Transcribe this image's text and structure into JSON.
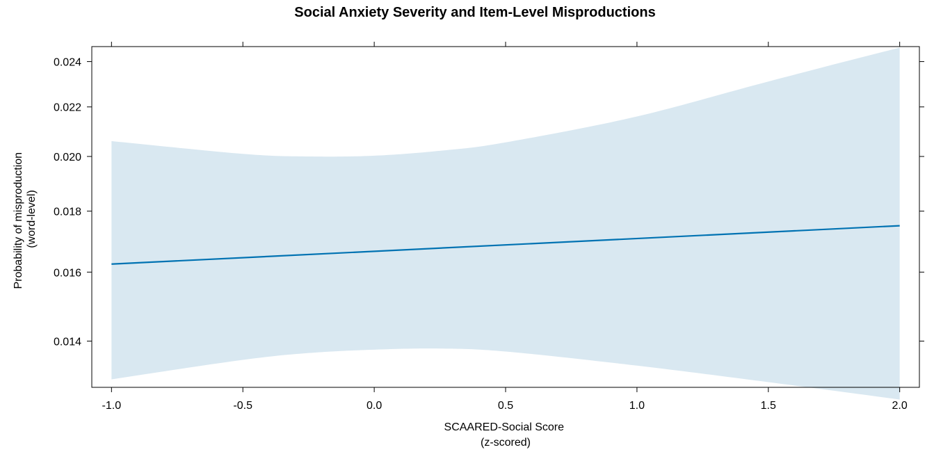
{
  "chart_data": {
    "type": "line",
    "title": "Social Anxiety Severity and Item-Level Misproductions",
    "xlabel_lines": [
      "SCAARED-Social Score",
      "(z-scored)"
    ],
    "ylabel_lines": [
      "Probability of misproduction",
      "(word-level)"
    ],
    "xlim": [
      -1.075,
      2.075
    ],
    "ylim": [
      0.0128,
      0.0247
    ],
    "y_scale": "logit",
    "x_ticks": [
      -1.0,
      -0.5,
      0.0,
      0.5,
      1.0,
      1.5,
      2.0
    ],
    "x_tick_labels": [
      "-1.0",
      "-0.5",
      "0.0",
      "0.5",
      "1.0",
      "1.5",
      "2.0"
    ],
    "y_ticks": [
      0.014,
      0.016,
      0.018,
      0.02,
      0.022,
      0.024
    ],
    "y_tick_labels": [
      "0.014",
      "0.016",
      "0.018",
      "0.020",
      "0.022",
      "0.024"
    ],
    "grid": false,
    "series": [
      {
        "x": [
          -1.0,
          2.0
        ],
        "y": [
          0.01625,
          0.0175
        ]
      }
    ],
    "confidence_band": {
      "x": [
        -1.0,
        -0.5,
        -0.25,
        0.0,
        0.25,
        0.5,
        1.0,
        1.5,
        2.0
      ],
      "upper": [
        0.0206,
        0.0201,
        0.02,
        0.02003,
        0.02022,
        0.02055,
        0.0216,
        0.0231,
        0.02465
      ],
      "lower": [
        0.013,
        0.0135,
        0.01368,
        0.01377,
        0.0138,
        0.01372,
        0.01335,
        0.01293,
        0.0125
      ]
    },
    "colors": {
      "line": "#0072b2",
      "band": "#d9e8f1",
      "axis": "#000000"
    }
  }
}
